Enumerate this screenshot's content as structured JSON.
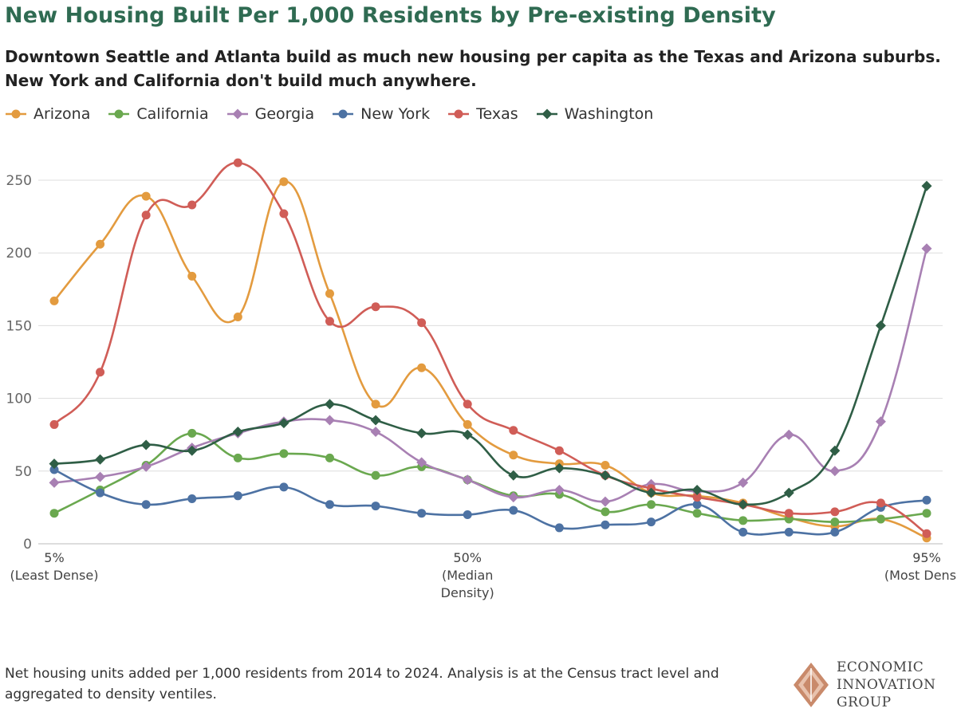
{
  "title": "New Housing Built Per 1,000 Residents by Pre-existing Density",
  "subtitle": "Downtown Seattle and Atlanta build as much new housing per capita as the Texas and Arizona suburbs. New York and California don't build much anywhere.",
  "footnote": "Net housing units added per 1,000 residents from 2014 to 2024. Analysis is at the Census tract level and aggregated to density ventiles.",
  "logo": {
    "line1": "ECONOMIC",
    "line2": "INNOVATION",
    "line3": "GROUP",
    "icon": "diamond-logo-icon"
  },
  "colors": {
    "Arizona": "#e39b3f",
    "California": "#6aa84f",
    "Georgia": "#a880b3",
    "New York": "#4d72a3",
    "Texas": "#d05d57",
    "Washington": "#2f5e46"
  },
  "chart_data": {
    "type": "line",
    "smooth": true,
    "x": [
      1,
      2,
      3,
      4,
      5,
      6,
      7,
      8,
      9,
      10,
      11,
      12,
      13,
      14,
      15,
      16,
      17,
      18,
      19,
      20
    ],
    "x_tick_labels": [
      {
        "x": 1,
        "lines": [
          "5%",
          "(Least Dense)"
        ]
      },
      {
        "x": 10,
        "lines": [
          "50%",
          "(Median",
          "Density)"
        ]
      },
      {
        "x": 20,
        "lines": [
          "95%",
          "(Most Dense)"
        ]
      }
    ],
    "ylim": [
      0,
      260
    ],
    "yticks": [
      0,
      50,
      100,
      150,
      200,
      250
    ],
    "grid": true,
    "legend_position": "top-left",
    "series": [
      {
        "name": "Arizona",
        "marker": "circle",
        "values": [
          167,
          206,
          239,
          184,
          156,
          249,
          172,
          96,
          121,
          82,
          61,
          55,
          54,
          35,
          33,
          28,
          18,
          12,
          17,
          4
        ]
      },
      {
        "name": "California",
        "marker": "circle",
        "values": [
          21,
          37,
          54,
          76,
          59,
          62,
          59,
          47,
          53,
          44,
          33,
          34,
          22,
          27,
          21,
          16,
          17,
          15,
          17,
          21
        ]
      },
      {
        "name": "Georgia",
        "marker": "diamond",
        "values": [
          42,
          46,
          53,
          66,
          76,
          84,
          85,
          77,
          56,
          44,
          32,
          37,
          29,
          41,
          36,
          42,
          75,
          50,
          84,
          203
        ]
      },
      {
        "name": "New York",
        "marker": "circle",
        "values": [
          51,
          35,
          27,
          31,
          33,
          39,
          27,
          26,
          21,
          20,
          23,
          11,
          13,
          15,
          27,
          8,
          8,
          8,
          25,
          30
        ]
      },
      {
        "name": "Texas",
        "marker": "circle",
        "values": [
          82,
          118,
          226,
          233,
          262,
          227,
          153,
          163,
          152,
          96,
          78,
          64,
          47,
          38,
          32,
          27,
          21,
          22,
          28,
          7
        ]
      },
      {
        "name": "Washington",
        "marker": "diamond",
        "values": [
          55,
          58,
          68,
          64,
          77,
          83,
          96,
          85,
          76,
          75,
          47,
          52,
          47,
          35,
          37,
          27,
          35,
          64,
          150,
          246
        ]
      }
    ]
  }
}
